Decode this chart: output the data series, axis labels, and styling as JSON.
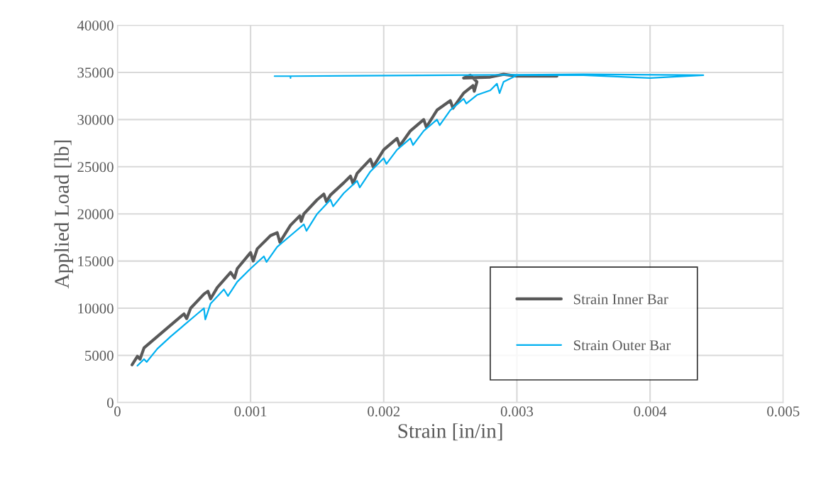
{
  "chart_data": {
    "type": "line",
    "xlabel": "Strain [in/in]",
    "ylabel": "Applied Load [lb]",
    "xlim": [
      0,
      0.005
    ],
    "xticks": [
      0,
      0.001,
      0.002,
      0.003,
      0.004,
      0.005
    ],
    "ylim": [
      0,
      40000
    ],
    "yticks": [
      0,
      5000,
      10000,
      15000,
      20000,
      25000,
      30000,
      35000,
      40000
    ],
    "grid": true,
    "legend": "bottom right",
    "marker": "none",
    "line_style": "solid",
    "series": [
      {
        "name": "Strain Inner Bar",
        "color": "#595959",
        "x": [
          0.00011,
          0.00015,
          0.00017,
          0.0002,
          0.0003,
          0.0004,
          0.0005,
          0.00052,
          0.00055,
          0.00065,
          0.00068,
          0.0007,
          0.00075,
          0.00085,
          0.00088,
          0.0009,
          0.001,
          0.00102,
          0.00105,
          0.00115,
          0.0012,
          0.00122,
          0.0013,
          0.00137,
          0.00138,
          0.0014,
          0.0015,
          0.00155,
          0.00157,
          0.0016,
          0.0017,
          0.00175,
          0.00177,
          0.0018,
          0.0019,
          0.00192,
          0.002,
          0.0021,
          0.00212,
          0.0022,
          0.0023,
          0.00232,
          0.0024,
          0.0025,
          0.00252,
          0.0026,
          0.00267,
          0.00268,
          0.0027,
          0.00265,
          0.0026,
          0.0028,
          0.0029,
          0.003,
          0.0033
        ],
        "values": [
          4000,
          4900,
          4600,
          5800,
          7000,
          8200,
          9400,
          8900,
          10000,
          11500,
          11800,
          11000,
          12200,
          13800,
          13200,
          14200,
          15900,
          15000,
          16300,
          17700,
          18000,
          17000,
          18800,
          19800,
          19200,
          20000,
          21500,
          22100,
          21300,
          22000,
          23300,
          24000,
          23200,
          24300,
          25800,
          25000,
          26800,
          28000,
          27200,
          28800,
          30000,
          29200,
          31000,
          32000,
          31200,
          32800,
          33600,
          33000,
          34000,
          34700,
          34400,
          34500,
          34800,
          34600,
          34600
        ]
      },
      {
        "name": "Strain Outer Bar",
        "color": "#00b0f0",
        "x": [
          0.00015,
          0.0002,
          0.00022,
          0.0003,
          0.0004,
          0.0005,
          0.0006,
          0.00065,
          0.00066,
          0.0007,
          0.0008,
          0.00083,
          0.0009,
          0.001,
          0.0011,
          0.00112,
          0.0012,
          0.0013,
          0.0014,
          0.00142,
          0.0015,
          0.0016,
          0.00162,
          0.0017,
          0.0018,
          0.00182,
          0.0019,
          0.002,
          0.00202,
          0.0021,
          0.0022,
          0.00222,
          0.0023,
          0.0024,
          0.00242,
          0.0025,
          0.0026,
          0.00262,
          0.0027,
          0.0028,
          0.00285,
          0.00287,
          0.0029,
          0.003,
          0.0035,
          0.004,
          0.0044,
          0.0035,
          0.0025,
          0.0013,
          0.0013,
          0.0013,
          0.00118
        ],
        "values": [
          3900,
          4600,
          4300,
          5700,
          7000,
          8200,
          9400,
          10000,
          8800,
          10500,
          12000,
          11300,
          12800,
          14200,
          15500,
          14900,
          16500,
          17700,
          18900,
          18200,
          20000,
          21500,
          20800,
          22200,
          23500,
          22800,
          24500,
          25900,
          25300,
          26800,
          28000,
          27300,
          28800,
          30000,
          29400,
          31000,
          32200,
          31700,
          32600,
          33100,
          33800,
          32800,
          34000,
          34700,
          34700,
          34400,
          34700,
          34800,
          34700,
          34600,
          34400,
          34600,
          34600
        ]
      }
    ]
  }
}
